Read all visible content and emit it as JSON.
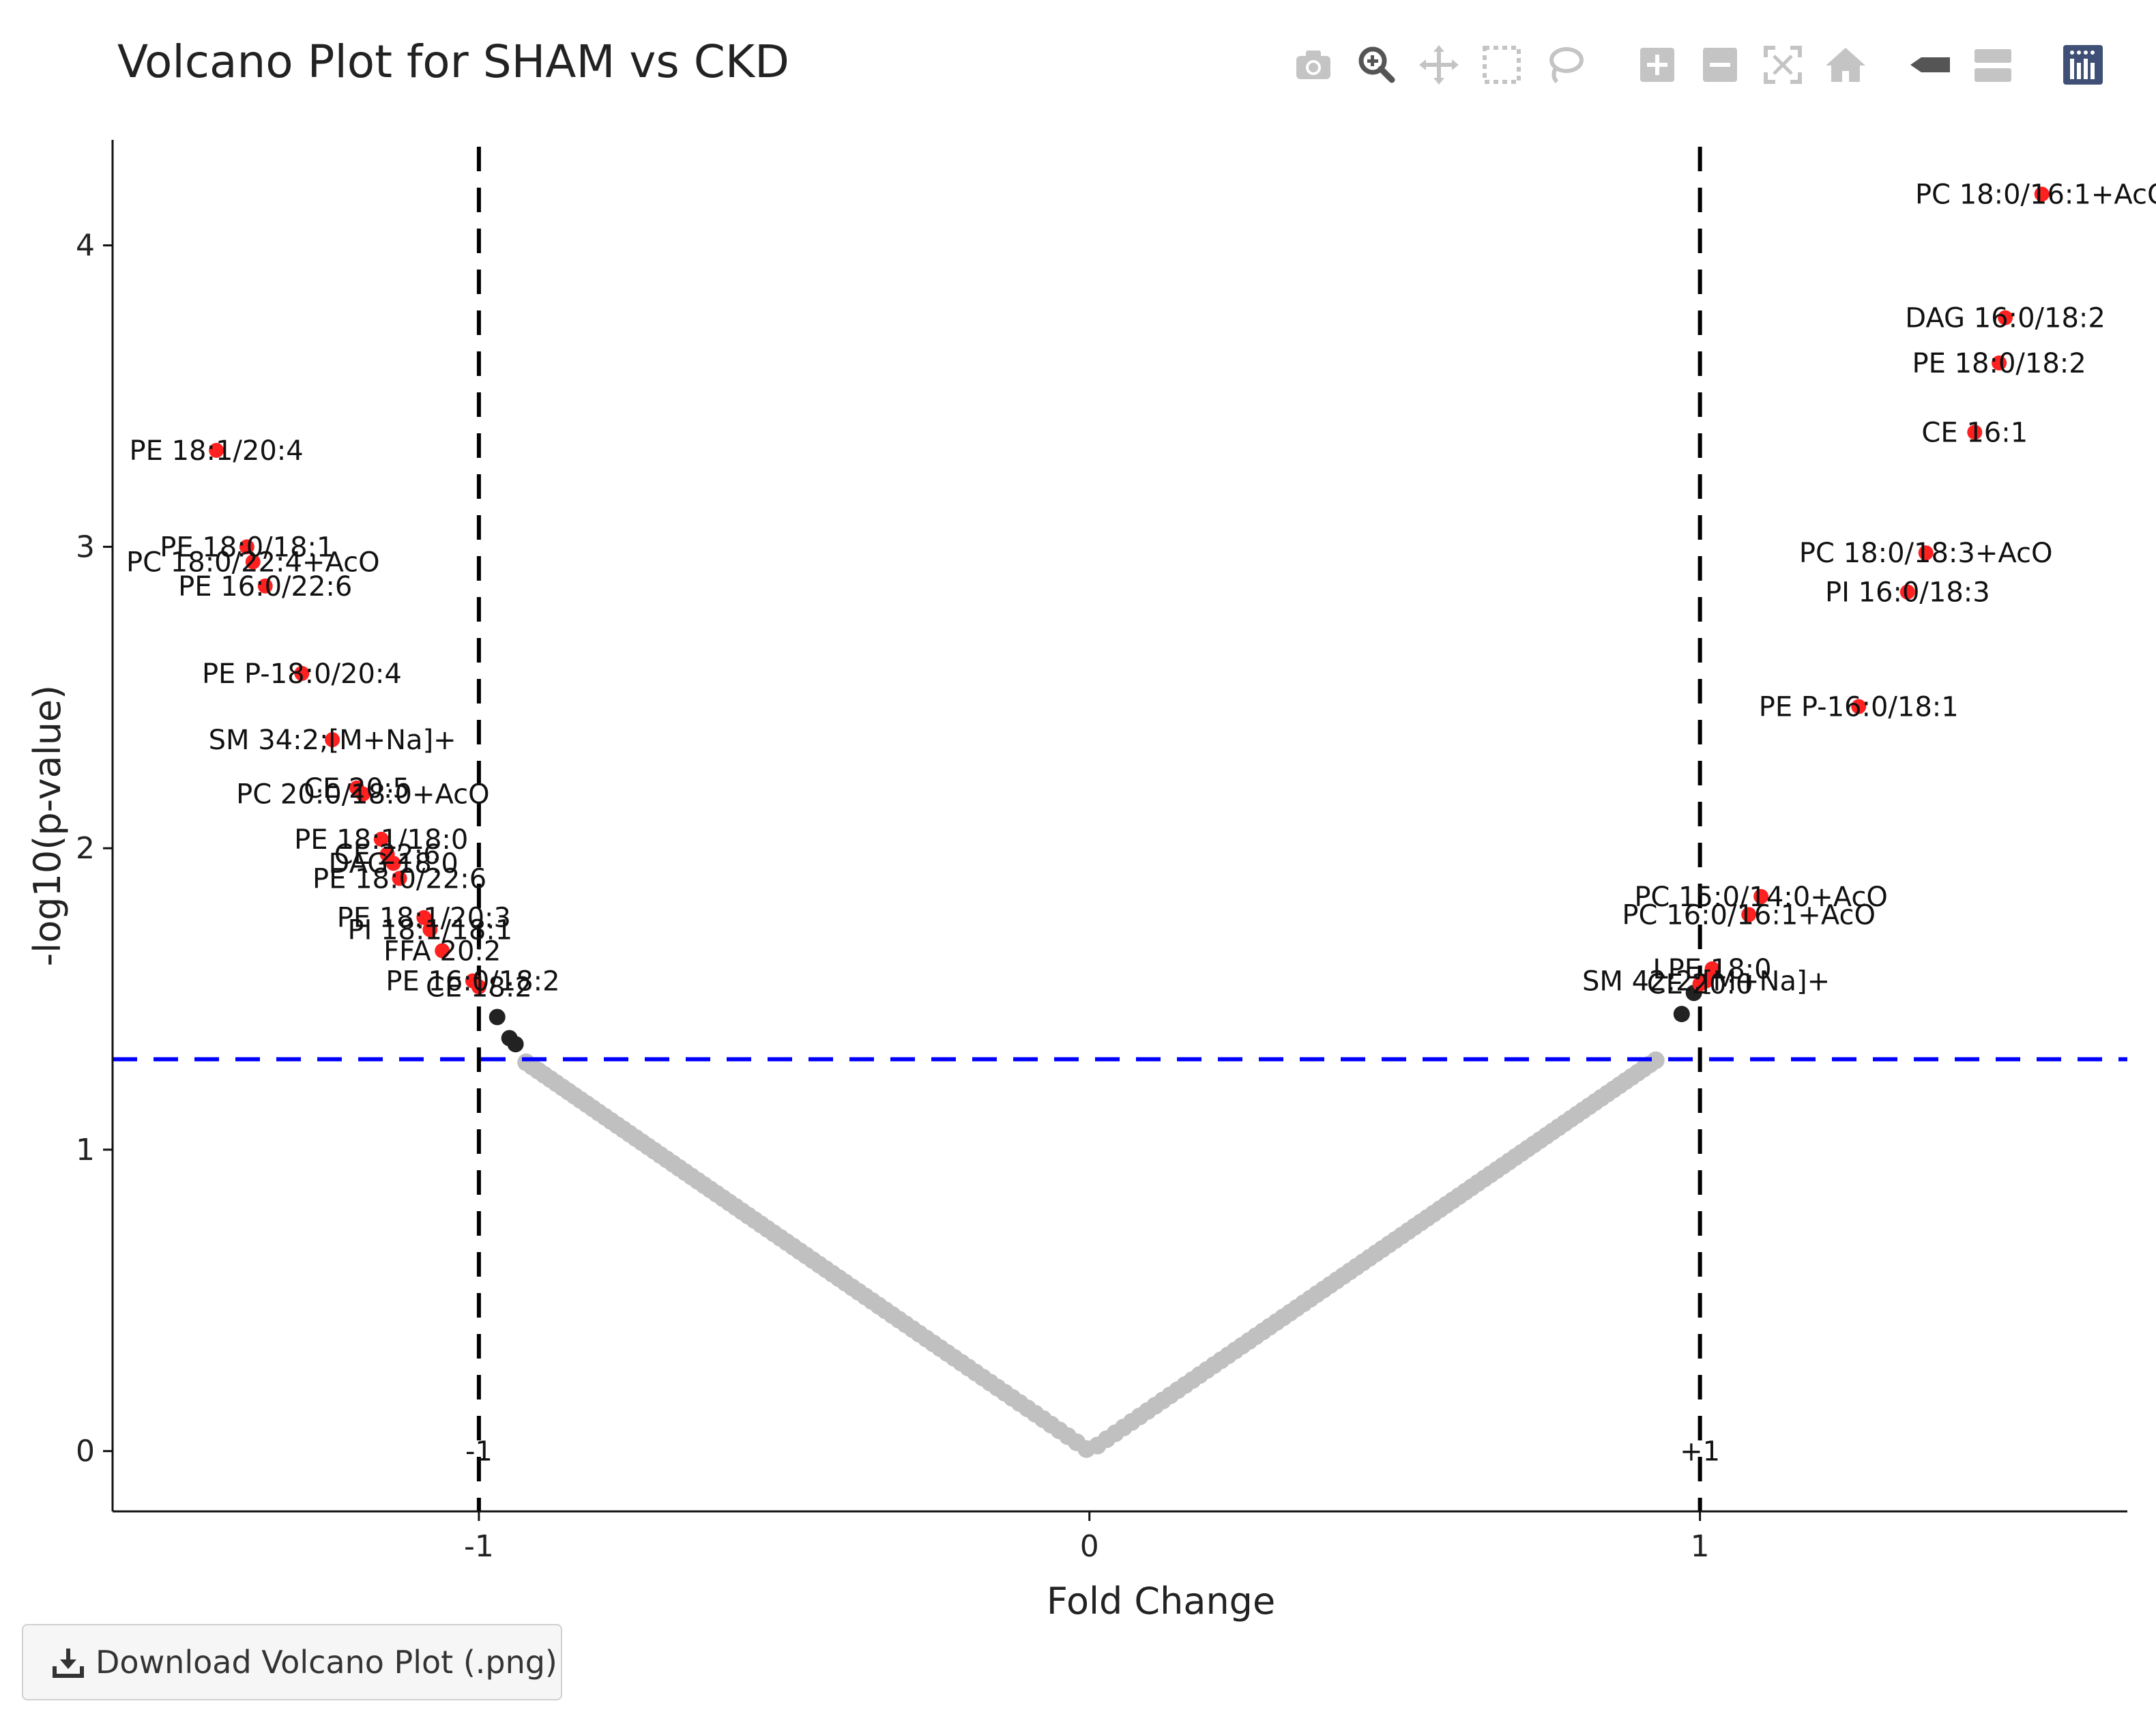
{
  "title": "Volcano Plot for SHAM vs CKD",
  "modebar": {
    "buttons": [
      {
        "name": "camera-icon",
        "title": "Download plot as a png"
      },
      {
        "name": "zoom-icon",
        "title": "Zoom"
      },
      {
        "name": "pan-icon",
        "title": "Pan"
      },
      {
        "name": "box-select-icon",
        "title": "Box Select"
      },
      {
        "name": "lasso-select-icon",
        "title": "Lasso Select"
      },
      {
        "name": "zoom-in-icon",
        "title": "Zoom in"
      },
      {
        "name": "zoom-out-icon",
        "title": "Zoom out"
      },
      {
        "name": "autoscale-icon",
        "title": "Autoscale"
      },
      {
        "name": "reset-axes-icon",
        "title": "Reset axes"
      },
      {
        "name": "spike-lines-icon",
        "title": "Toggle Spike Lines"
      },
      {
        "name": "hover-compare-icon",
        "title": "Compare data on hover"
      },
      {
        "name": "plotly-logo-icon",
        "title": "Produced with Plotly"
      }
    ]
  },
  "download_button": {
    "label": "Download Volcano Plot (.png)",
    "icon": "download-icon"
  },
  "colors": {
    "significant": "#ff2020",
    "near_threshold": "#222222",
    "not_significant": "#c0c0c0",
    "threshold_vertical": "#000000",
    "threshold_horizontal": "#0000ff"
  },
  "chart_data": {
    "type": "scatter",
    "title": "Volcano Plot for SHAM vs CKD",
    "xlabel": "Fold Change",
    "ylabel": "-log10(p-value)",
    "xlim": [
      -1.6,
      1.7
    ],
    "ylim": [
      -0.2,
      4.35
    ],
    "xticks": [
      -1,
      0,
      1
    ],
    "yticks": [
      0,
      1,
      2,
      3,
      4
    ],
    "grid": false,
    "legend": "none",
    "thresholds": {
      "fold_change": [
        -1,
        1
      ],
      "p_value_line": 1.3,
      "zero_markers": [
        "-1",
        "+1"
      ]
    },
    "significant_points": [
      {
        "label": "PC 18:0/16:1+AcO",
        "x": 1.56,
        "y": 4.17
      },
      {
        "label": "DAG 16:0/18:2",
        "x": 1.5,
        "y": 3.76
      },
      {
        "label": "PE 18:0/18:2",
        "x": 1.49,
        "y": 3.61
      },
      {
        "label": "CE 16:1",
        "x": 1.45,
        "y": 3.38
      },
      {
        "label": "PC 18:0/18:3+AcO",
        "x": 1.37,
        "y": 2.98
      },
      {
        "label": "PI 16:0/18:3",
        "x": 1.34,
        "y": 2.85
      },
      {
        "label": "PE P-16:0/18:1",
        "x": 1.26,
        "y": 2.47
      },
      {
        "label": "PC 15:0/14:0+AcO",
        "x": 1.1,
        "y": 1.84
      },
      {
        "label": "PC 16:0/16:1+AcO",
        "x": 1.08,
        "y": 1.78
      },
      {
        "label": "LPE 18:0",
        "x": 1.02,
        "y": 1.6
      },
      {
        "label": "SM 42:2;[M+Na]+",
        "x": 1.01,
        "y": 1.56
      },
      {
        "label": "CE 20:0",
        "x": 1.0,
        "y": 1.55
      },
      {
        "label": "PE 18:1/20:4",
        "x": -1.43,
        "y": 3.32
      },
      {
        "label": "PE 18:0/18:1",
        "x": -1.38,
        "y": 3.0
      },
      {
        "label": "PC 18:0/22:4+AcO",
        "x": -1.37,
        "y": 2.95
      },
      {
        "label": "PE 16:0/22:6",
        "x": -1.35,
        "y": 2.87
      },
      {
        "label": "PE P-18:0/20:4",
        "x": -1.29,
        "y": 2.58
      },
      {
        "label": "SM 34:2;[M+Na]+",
        "x": -1.24,
        "y": 2.36
      },
      {
        "label": "CE 20:5",
        "x": -1.2,
        "y": 2.2
      },
      {
        "label": "PC 20:0/18:0+AcO",
        "x": -1.19,
        "y": 2.18
      },
      {
        "label": "PE 18:1/18:0",
        "x": -1.16,
        "y": 2.03
      },
      {
        "label": "CE 22:6",
        "x": -1.15,
        "y": 1.98
      },
      {
        "label": "DAG 18:0",
        "x": -1.14,
        "y": 1.95
      },
      {
        "label": "PE 18:0/22:6",
        "x": -1.13,
        "y": 1.9
      },
      {
        "label": "PE 18:1/20:3",
        "x": -1.09,
        "y": 1.77
      },
      {
        "label": "PI 18:1/18:1",
        "x": -1.08,
        "y": 1.73
      },
      {
        "label": "FFA 20:2",
        "x": -1.06,
        "y": 1.66
      },
      {
        "label": "PE 16:0/18:2",
        "x": -1.01,
        "y": 1.56
      },
      {
        "label": "CE 18:2",
        "x": -1.0,
        "y": 1.54
      }
    ],
    "near_threshold_points": [
      {
        "x": -0.97,
        "y": 1.44
      },
      {
        "x": -0.95,
        "y": 1.37
      },
      {
        "x": -0.94,
        "y": 1.35
      },
      {
        "x": 0.97,
        "y": 1.45
      },
      {
        "x": 0.99,
        "y": 1.52
      }
    ]
  }
}
